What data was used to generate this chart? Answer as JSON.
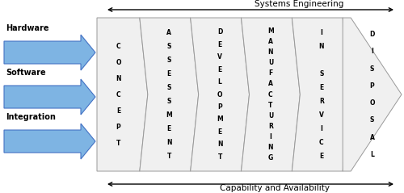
{
  "title_top": "Systems Engineering",
  "title_bottom": "Capability and Availability",
  "left_labels": [
    "Hardware",
    "Software",
    "Integration"
  ],
  "stage_names": [
    "CONCEPT",
    "ASSESSMENT",
    "DEVELOPMENT",
    "MANUFACTURING",
    "IN\nSERVICE",
    "DISPOSAL"
  ],
  "arrow_color_light": "#7EB4E3",
  "arrow_color_dark": "#4472C4",
  "chevron_fill": "#F0F0F0",
  "chevron_edge": "#999999",
  "bg_color": "#FFFFFF",
  "text_color": "#000000",
  "figsize": [
    5.0,
    2.39
  ],
  "dpi": 100
}
